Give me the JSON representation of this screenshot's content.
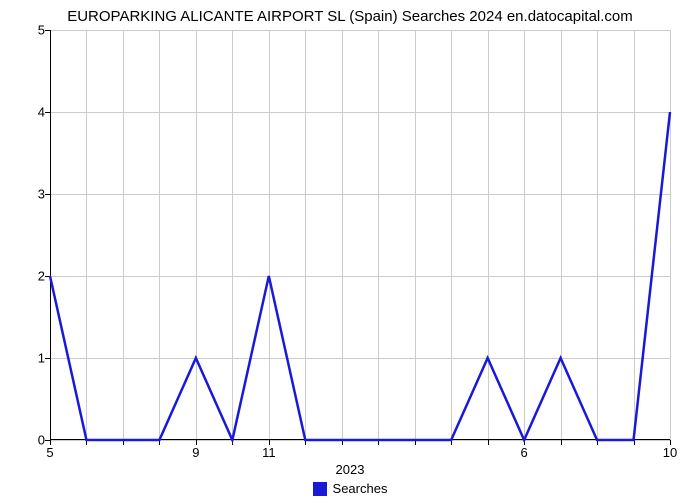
{
  "chart": {
    "type": "line",
    "title": "EUROPARKING ALICANTE AIRPORT SL (Spain) Searches 2024 en.datocapital.com",
    "title_fontsize": 15,
    "title_color": "#000000",
    "background_color": "#ffffff",
    "grid_color": "#cccccc",
    "axis_color": "#000000",
    "line_color": "#1919d8",
    "line_width": 2.5,
    "x_axis_title": "2023",
    "ylim": [
      0,
      5
    ],
    "ytick_step": 1,
    "y_ticks": [
      {
        "value": 0,
        "label": "0"
      },
      {
        "value": 1,
        "label": "1"
      },
      {
        "value": 2,
        "label": "2"
      },
      {
        "value": 3,
        "label": "3"
      },
      {
        "value": 4,
        "label": "4"
      },
      {
        "value": 5,
        "label": "5"
      }
    ],
    "x_ticks": [
      {
        "index": 0,
        "label": "5"
      },
      {
        "index": 4,
        "label": "9"
      },
      {
        "index": 6,
        "label": "11"
      },
      {
        "index": 13,
        "label": "6"
      },
      {
        "index": 17,
        "label": "10"
      }
    ],
    "n_points": 18,
    "values": [
      2,
      0,
      0,
      0,
      1,
      0,
      2,
      0,
      0,
      0,
      0,
      0,
      1,
      0,
      1,
      0,
      0,
      4
    ],
    "legend": {
      "label": "Searches",
      "swatch_color": "#1919d8"
    },
    "label_fontsize": 13,
    "label_color": "#000000"
  }
}
